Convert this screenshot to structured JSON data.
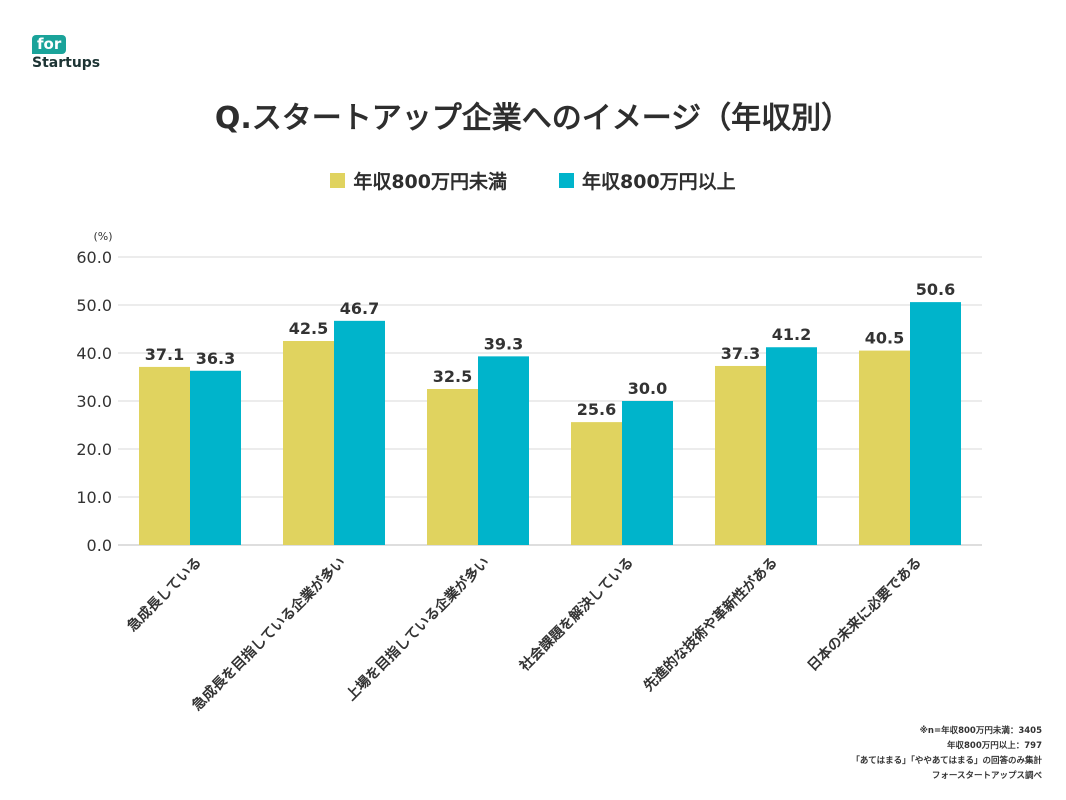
{
  "logo": {
    "badge": "for",
    "word": "Startups"
  },
  "title": "Q.スタートアップ企業へのイメージ（年収別）",
  "notes": [
    "※n=年収800万円未満：3405",
    "年収800万円以上：797",
    "「あてはまる」「ややあてはまる」の回答のみ集計",
    "フォースタートアップス調べ"
  ],
  "chart_data": {
    "type": "bar",
    "ylabel": "(%)",
    "ylim": [
      0,
      60
    ],
    "yticks": [
      "0.0",
      "10.0",
      "20.0",
      "30.0",
      "40.0",
      "50.0",
      "60.0"
    ],
    "grid": true,
    "legend_position": "top",
    "categories": [
      "急成長している",
      "急成長を目指している企業が多い",
      "上場を目指している企業が多い",
      "社会課題を解決している",
      "先進的な技術や革新性がある",
      "日本の未来に必要である"
    ],
    "series": [
      {
        "name": "年収800万円未満",
        "color": "#e0d35f",
        "values": [
          37.1,
          42.5,
          32.5,
          25.6,
          37.3,
          40.5
        ]
      },
      {
        "name": "年収800万円以上",
        "color": "#00b4cb",
        "values": [
          36.3,
          46.7,
          39.3,
          30.0,
          41.2,
          50.6
        ]
      }
    ]
  }
}
